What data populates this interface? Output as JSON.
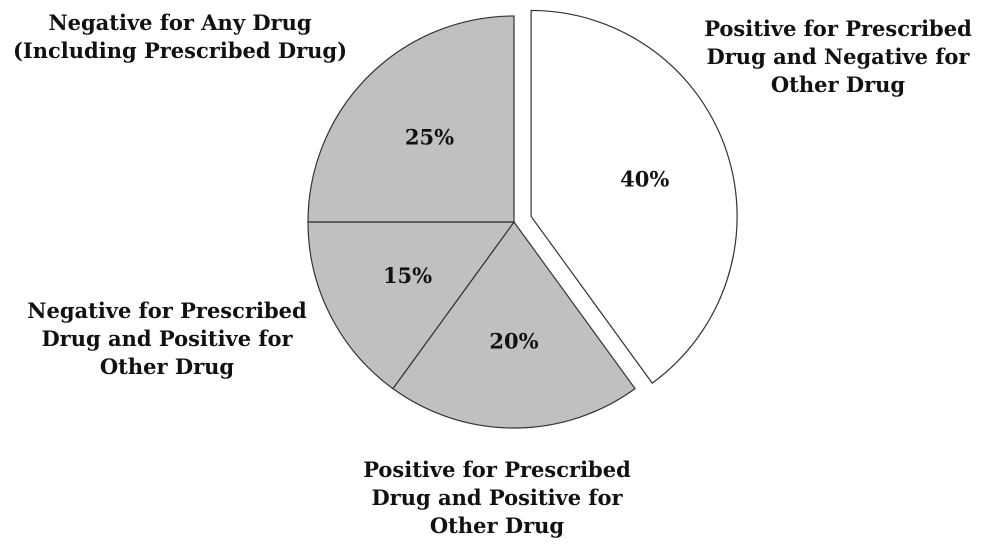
{
  "chart_data": {
    "type": "pie",
    "title": "",
    "slices": [
      {
        "label_lines": [
          "Positive for Prescribed",
          "Drug and Negative for",
          "Other Drug"
        ],
        "value": 40,
        "value_label": "40%",
        "color": "#ffffff",
        "exploded": true
      },
      {
        "label_lines": [
          "Positive for Prescribed",
          "Drug and Positive for",
          "Other Drug"
        ],
        "value": 20,
        "value_label": "20%",
        "color": "#c0c0c0",
        "exploded": false
      },
      {
        "label_lines": [
          "Negative for Prescribed",
          "Drug and Positive for",
          "Other Drug"
        ],
        "value": 15,
        "value_label": "15%",
        "color": "#c0c0c0",
        "exploded": false
      },
      {
        "label_lines": [
          "Negative for Any Drug",
          "(Including Prescribed Drug)"
        ],
        "value": 25,
        "value_label": "25%",
        "color": "#c0c0c0",
        "exploded": false
      }
    ],
    "start_angle_deg": 0,
    "direction": "clockwise",
    "stroke_color": "#333333"
  }
}
